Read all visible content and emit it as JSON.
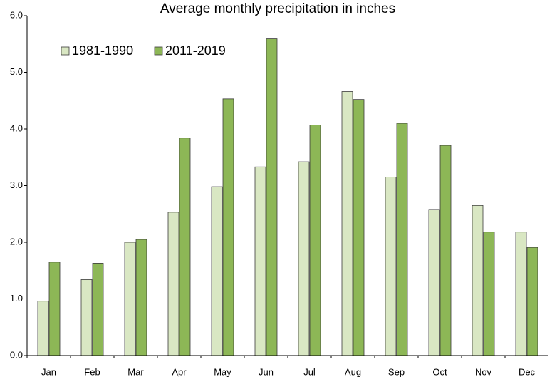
{
  "chart_data": {
    "type": "bar",
    "title": "Average monthly precipitation in inches",
    "categories": [
      "Jan",
      "Feb",
      "Mar",
      "Apr",
      "May",
      "Jun",
      "Jul",
      "Aug",
      "Sep",
      "Oct",
      "Nov",
      "Dec"
    ],
    "series": [
      {
        "name": "1981-1990",
        "color": "#d9e7c3",
        "values": [
          0.96,
          1.34,
          2.0,
          2.53,
          2.98,
          3.33,
          3.42,
          4.66,
          3.15,
          2.58,
          2.65,
          2.18
        ]
      },
      {
        "name": "2011-2019",
        "color": "#8db756",
        "values": [
          1.65,
          1.63,
          2.05,
          3.84,
          4.53,
          5.59,
          4.07,
          4.52,
          4.1,
          3.71,
          2.18,
          1.91
        ]
      }
    ],
    "ylim": [
      0,
      6
    ],
    "yticks": [
      {
        "value": 0,
        "label": "0.0"
      },
      {
        "value": 1,
        "label": "1.0"
      },
      {
        "value": 2,
        "label": "2.0"
      },
      {
        "value": 3,
        "label": "3.0"
      },
      {
        "value": 4,
        "label": "4.0"
      },
      {
        "value": 5,
        "label": "5.0"
      },
      {
        "value": 6,
        "label": "6.0"
      }
    ],
    "grid": false,
    "legend": "top-left"
  }
}
